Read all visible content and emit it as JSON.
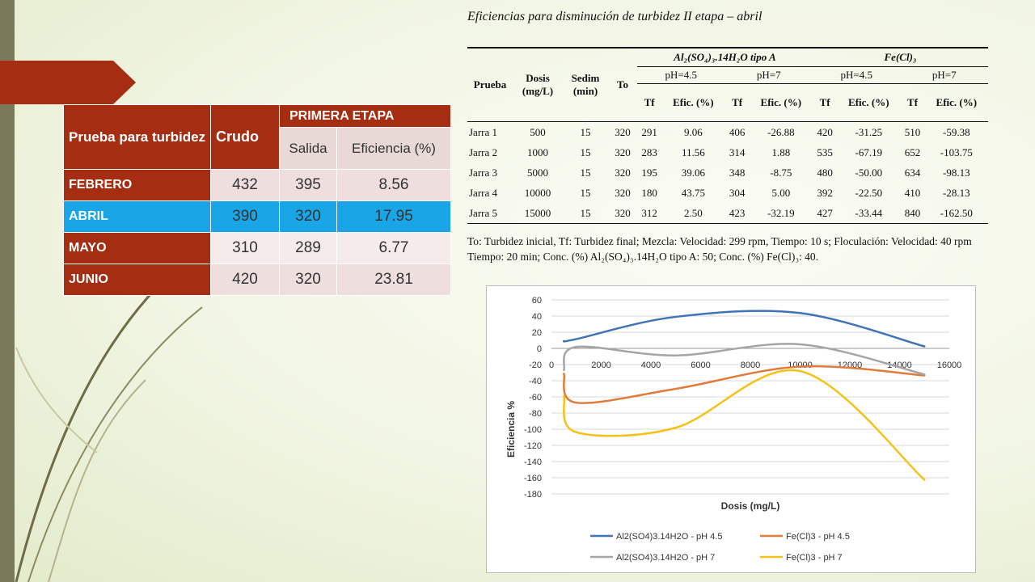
{
  "left_table": {
    "col_prueba": "Prueba para turbidez",
    "col_crudo": "Crudo",
    "col_etapa": "PRIMERA ETAPA",
    "col_salida": "Salida",
    "col_eficiencia": "Eficiencia (%)",
    "rows": [
      {
        "label": "FEBRERO",
        "crudo": "432",
        "salida": "395",
        "eficiencia": "8.56"
      },
      {
        "label": "ABRIL",
        "crudo": "390",
        "salida": "320",
        "eficiencia": "17.95"
      },
      {
        "label": "MAYO",
        "crudo": "310",
        "salida": "289",
        "eficiencia": "6.77"
      },
      {
        "label": "JUNIO",
        "crudo": "420",
        "salida": "320",
        "eficiencia": "23.81"
      }
    ],
    "colors": {
      "header": "#a52d12",
      "highlight": "#1aa5e6"
    }
  },
  "right_title": "Eficiencias para disminución de turbidez II etapa – abril",
  "right_table": {
    "h_prueba": "Prueba",
    "h_dosis": "Dosis (mg/L)",
    "h_sedim": "Sedim (min)",
    "h_to": "To",
    "h_al": "Al₂(SO₄)₃.14H₂O tipo A",
    "h_fe": "Fe(Cl)₃",
    "ph1": "pH=4.5",
    "ph2": "pH=7",
    "ph3": "pH=4.5",
    "ph4": "pH=7",
    "tf": "Tf",
    "efic": "Efic. (%)",
    "rows": [
      [
        "Jarra 1",
        "500",
        "15",
        "320",
        "291",
        "9.06",
        "406",
        "-26.88",
        "420",
        "-31.25",
        "510",
        "-59.38"
      ],
      [
        "Jarra 2",
        "1000",
        "15",
        "320",
        "283",
        "11.56",
        "314",
        "1.88",
        "535",
        "-67.19",
        "652",
        "-103.75"
      ],
      [
        "Jarra 3",
        "5000",
        "15",
        "320",
        "195",
        "39.06",
        "348",
        "-8.75",
        "480",
        "-50.00",
        "634",
        "-98.13"
      ],
      [
        "Jarra 4",
        "10000",
        "15",
        "320",
        "180",
        "43.75",
        "304",
        "5.00",
        "392",
        "-22.50",
        "410",
        "-28.13"
      ],
      [
        "Jarra 5",
        "15000",
        "15",
        "320",
        "312",
        "2.50",
        "423",
        "-32.19",
        "427",
        "-33.44",
        "840",
        "-162.50"
      ]
    ]
  },
  "note": "To: Turbidez inicial, Tf: Turbidez final; Mezcla: Velocidad: 299 rpm, Tiempo: 10 s; Floculación: Velocidad: 40 rpm Tiempo: 20 min; Conc. (%) Al₂(SO₄)₃.14H₂O tipo A: 50; Conc. (%) Fe(Cl)₃: 40.",
  "chart_data": {
    "type": "line",
    "xlabel": "Dosis (mg/L)",
    "ylabel": "Eficiencia %",
    "xlim": [
      0,
      16000
    ],
    "ylim": [
      -180,
      60
    ],
    "xticks": [
      0,
      2000,
      4000,
      6000,
      8000,
      10000,
      12000,
      14000,
      16000
    ],
    "yticks": [
      60,
      40,
      20,
      0,
      -20,
      -40,
      -60,
      -80,
      -100,
      -120,
      -140,
      -160,
      -180
    ],
    "grid": true,
    "legend_position": "bottom",
    "series": [
      {
        "name": "Al2(SO4)3.14H2O - pH 4.5",
        "color": "#3f73b6",
        "x": [
          500,
          1000,
          5000,
          10000,
          15000
        ],
        "y": [
          9.06,
          11.56,
          39.06,
          43.75,
          2.5
        ]
      },
      {
        "name": "Fe(Cl)3 - pH 4.5",
        "color": "#e07b39",
        "x": [
          500,
          1000,
          5000,
          10000,
          15000
        ],
        "y": [
          -31.25,
          -67.19,
          -50.0,
          -22.5,
          -33.44
        ]
      },
      {
        "name": "Al2(SO4)3.14H2O - pH 7",
        "color": "#a5a5a5",
        "x": [
          500,
          1000,
          5000,
          10000,
          15000
        ],
        "y": [
          -26.88,
          1.88,
          -8.75,
          5.0,
          -32.19
        ]
      },
      {
        "name": "Fe(Cl)3 - pH 7",
        "color": "#f5c118",
        "x": [
          500,
          1000,
          5000,
          10000,
          15000
        ],
        "y": [
          -59.38,
          -103.75,
          -98.13,
          -28.13,
          -162.5
        ]
      }
    ]
  }
}
